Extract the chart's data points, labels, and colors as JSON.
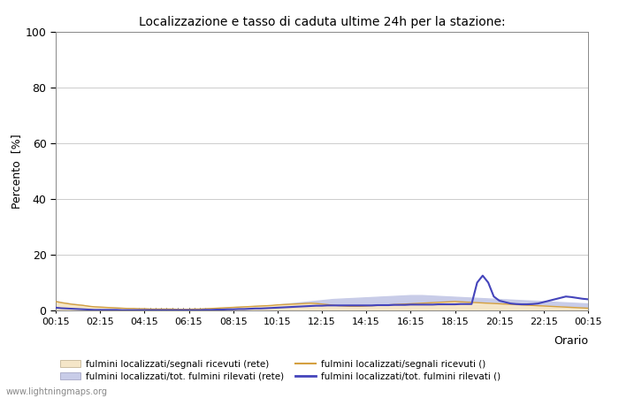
{
  "title": "Localizzazione e tasso di caduta ultime 24h per la stazione:",
  "xlabel": "Orario",
  "ylabel": "Percento  [%]",
  "xlim": [
    0,
    96
  ],
  "ylim": [
    0,
    100
  ],
  "yticks": [
    0,
    20,
    40,
    60,
    80,
    100
  ],
  "yminor_ticks": [
    10,
    30,
    50,
    70,
    90
  ],
  "xtick_labels": [
    "00:15",
    "02:15",
    "04:15",
    "06:15",
    "08:15",
    "10:15",
    "12:15",
    "14:15",
    "16:15",
    "18:15",
    "20:15",
    "22:15",
    "00:15"
  ],
  "watermark": "www.lightningmaps.org",
  "bg_color": "#ffffff",
  "plot_bg_color": "#ffffff",
  "grid_color": "#cccccc",
  "fill_rete_color": "#f5e6c8",
  "fill_tot_color": "#c8cce8",
  "line_rete_color": "#d4a040",
  "line_tot_color": "#4444bb",
  "legend_items": [
    {
      "label": "fulmini localizzati/segnali ricevuti (rete)",
      "type": "fill",
      "color": "#f5e6c8"
    },
    {
      "label": "fulmini localizzati/segnali ricevuti ()",
      "type": "line",
      "color": "#d4a040"
    },
    {
      "label": "fulmini localizzati/tot. fulmini rilevati (rete)",
      "type": "fill",
      "color": "#c8cce8"
    },
    {
      "label": "fulmini localizzati/tot. fulmini rilevati ()",
      "type": "line",
      "color": "#4444bb"
    }
  ],
  "x_num_points": 97,
  "signal_rete": [
    3.2,
    2.8,
    2.5,
    2.2,
    2.0,
    1.8,
    1.5,
    1.3,
    1.2,
    1.1,
    1.0,
    0.9,
    0.8,
    0.7,
    0.7,
    0.6,
    0.6,
    0.5,
    0.5,
    0.5,
    0.5,
    0.5,
    0.4,
    0.4,
    0.4,
    0.5,
    0.5,
    0.6,
    0.7,
    0.8,
    0.9,
    1.0,
    1.1,
    1.2,
    1.3,
    1.4,
    1.5,
    1.6,
    1.7,
    1.8,
    2.0,
    2.1,
    2.2,
    2.3,
    2.4,
    2.5,
    2.6,
    2.5,
    2.3,
    2.1,
    1.9,
    1.7,
    1.6,
    1.5,
    1.5,
    1.5,
    1.6,
    1.7,
    1.8,
    1.9,
    2.0,
    2.1,
    2.2,
    2.3,
    2.4,
    2.5,
    2.6,
    2.7,
    2.8,
    2.9,
    3.0,
    3.1,
    3.2,
    3.1,
    3.0,
    2.9,
    2.8,
    2.7,
    2.6,
    2.5,
    2.4,
    2.3,
    2.2,
    2.1,
    2.0,
    1.9,
    1.8,
    1.7,
    1.6,
    1.5,
    1.4,
    1.3,
    1.2,
    1.1,
    1.0,
    0.9,
    0.8
  ],
  "tot_rete": [
    3.5,
    3.0,
    2.7,
    2.4,
    2.2,
    1.9,
    1.6,
    1.4,
    1.3,
    1.2,
    1.1,
    1.0,
    0.9,
    0.8,
    0.8,
    0.7,
    0.7,
    0.6,
    0.6,
    0.6,
    0.6,
    0.6,
    0.5,
    0.5,
    0.5,
    0.6,
    0.6,
    0.7,
    0.8,
    0.9,
    1.0,
    1.1,
    1.2,
    1.3,
    1.4,
    1.5,
    1.6,
    1.7,
    1.8,
    1.9,
    2.1,
    2.3,
    2.5,
    2.7,
    2.9,
    3.1,
    3.3,
    3.5,
    3.7,
    3.9,
    4.1,
    4.2,
    4.3,
    4.4,
    4.5,
    4.6,
    4.7,
    4.8,
    4.9,
    5.0,
    5.1,
    5.2,
    5.3,
    5.4,
    5.5,
    5.5,
    5.5,
    5.4,
    5.3,
    5.2,
    5.1,
    5.0,
    4.9,
    4.8,
    4.7,
    4.6,
    4.5,
    4.4,
    4.3,
    4.2,
    4.1,
    4.0,
    3.9,
    3.8,
    3.7,
    3.6,
    3.5,
    3.4,
    3.3,
    3.2,
    3.1,
    3.0,
    2.9,
    2.8,
    2.7,
    2.6,
    2.5
  ],
  "tot_line": [
    1.0,
    0.8,
    0.7,
    0.6,
    0.5,
    0.4,
    0.3,
    0.2,
    0.2,
    0.2,
    0.2,
    0.2,
    0.1,
    0.1,
    0.1,
    0.1,
    0.1,
    0.1,
    0.1,
    0.1,
    0.1,
    0.1,
    0.1,
    0.1,
    0.1,
    0.1,
    0.1,
    0.2,
    0.2,
    0.3,
    0.3,
    0.4,
    0.4,
    0.5,
    0.5,
    0.6,
    0.7,
    0.7,
    0.8,
    0.9,
    1.0,
    1.1,
    1.2,
    1.3,
    1.4,
    1.5,
    1.6,
    1.7,
    1.7,
    1.8,
    1.8,
    1.8,
    1.8,
    1.8,
    1.8,
    1.8,
    1.8,
    1.8,
    1.9,
    1.9,
    1.9,
    2.0,
    2.0,
    2.0,
    2.1,
    2.1,
    2.1,
    2.1,
    2.1,
    2.2,
    2.2,
    2.2,
    2.2,
    2.3,
    2.3,
    2.3,
    10.0,
    12.5,
    10.0,
    5.0,
    3.5,
    3.0,
    2.5,
    2.3,
    2.2,
    2.2,
    2.3,
    2.5,
    3.0,
    3.5,
    4.0,
    4.5,
    5.0,
    4.8,
    4.5,
    4.2,
    4.0
  ]
}
